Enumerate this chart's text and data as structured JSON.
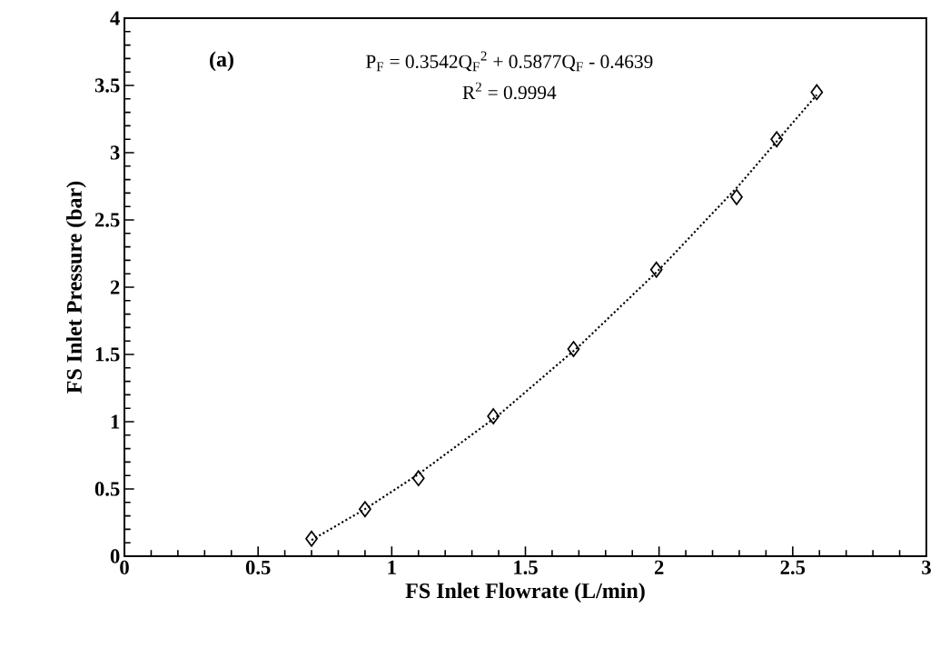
{
  "chart_data": {
    "type": "scatter",
    "xlabel": "FS Inlet Flowrate (L/min)",
    "ylabel": "FS Inlet Pressure (bar)",
    "annotations": [
      "(a)",
      "P$_{F}$ = 0.3542Q$_{F}$$^{2}$ + 0.5877Q$_{F}$ - 0.4639",
      "R$^{2}$ = 0.9994"
    ],
    "xlim": [
      0,
      3
    ],
    "ylim": [
      0,
      4
    ],
    "xticks": [
      0,
      0.5,
      1,
      1.5,
      2,
      2.5,
      3
    ],
    "yticks": [
      0,
      0.5,
      1,
      1.5,
      2,
      2.5,
      3,
      3.5,
      4
    ],
    "series": [
      {
        "color": "#000000",
        "marker": "diamond",
        "x": [
          0.7,
          0.9,
          1.1,
          1.38,
          1.68,
          1.99,
          2.29,
          2.44,
          2.59
        ],
        "values": [
          0.13,
          0.35,
          0.58,
          1.04,
          1.54,
          2.13,
          2.67,
          3.1,
          3.45
        ]
      },
      {
        "type": "line",
        "color": "#000000",
        "line_style": "dotted",
        "marker": "none",
        "x": [
          0.7,
          0.9,
          1.1,
          1.4,
          1.7,
          2.0,
          2.3,
          2.59
        ],
        "values": [
          0.12,
          0.35,
          0.61,
          1.05,
          1.56,
          2.13,
          2.76,
          3.43
        ]
      }
    ]
  }
}
